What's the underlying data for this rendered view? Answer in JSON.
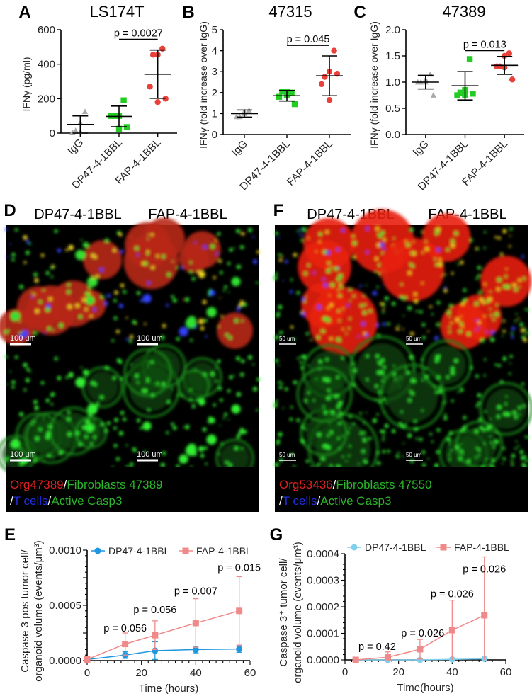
{
  "colors": {
    "igg": "#a9a9a9",
    "dp47": "#22cc22",
    "fap": "#e8413a",
    "dp47_line_E": "#1e96e0",
    "dp47_line_G": "#7fd0f0",
    "fap_line": "#f08a8a",
    "red_text": "#e02020",
    "green_text": "#2ab52a",
    "blue_text": "#2030e0"
  },
  "chart_data": [
    {
      "panel": "A",
      "type": "scatter",
      "title": "LS174T",
      "ylabel": "IFNγ (pg/ml)",
      "ylim": [
        0,
        600
      ],
      "yticks": [
        "0",
        "200",
        "400",
        "600"
      ],
      "ytick_values": [
        0,
        200,
        400,
        600
      ],
      "categories": [
        "IgG",
        "DP47-4-1BBL",
        "FAP-4-1BBL"
      ],
      "groups": [
        {
          "points": [
            125,
            60,
            15,
            5,
            10
          ],
          "mean": 50,
          "sd": 50,
          "marker": "triangle"
        },
        {
          "points": [
            190,
            100,
            100,
            100,
            25,
            35
          ],
          "mean": 97,
          "sd": 60,
          "marker": "square"
        },
        {
          "points": [
            490,
            455,
            455,
            270,
            180,
            200
          ],
          "mean": 342,
          "sd": 140,
          "marker": "circle"
        }
      ],
      "comparison": {
        "from": 1,
        "to": 2,
        "label": "p = 0.0027",
        "y": 545
      }
    },
    {
      "panel": "B",
      "type": "scatter",
      "title": "47315",
      "ylabel": "IFNγ (fold increase over IgG)",
      "ylim": [
        0,
        5
      ],
      "yticks": [
        "0",
        "1",
        "2",
        "3",
        "4",
        "5"
      ],
      "ytick_values": [
        0,
        1,
        2,
        3,
        4,
        5
      ],
      "categories": [
        "IgG",
        "DP47-4-1BBL",
        "FAP-4-1BBL"
      ],
      "groups": [
        {
          "points": [
            1.15,
            1.1,
            0.85,
            0.85,
            1.0
          ],
          "mean": 1.0,
          "sd": 0.17,
          "marker": "triangle"
        },
        {
          "points": [
            2.0,
            2.05,
            2.05,
            1.8,
            1.9,
            1.45
          ],
          "mean": 1.85,
          "sd": 0.25,
          "marker": "square"
        },
        {
          "points": [
            4.0,
            3.0,
            2.75,
            2.4,
            1.65,
            2.9
          ],
          "mean": 2.8,
          "sd": 0.95,
          "marker": "circle"
        }
      ],
      "comparison": {
        "from": 1,
        "to": 2,
        "label": "p = 0.045",
        "y": 4.25
      }
    },
    {
      "panel": "C",
      "type": "scatter",
      "title": "47389",
      "ylabel": "IFNγ (fold increase over IgG)",
      "ylim": [
        0,
        2
      ],
      "yticks": [
        "0.0",
        "0.5",
        "1.0",
        "1.5",
        "2.0"
      ],
      "ytick_values": [
        0,
        0.5,
        1,
        1.5,
        2
      ],
      "categories": [
        "IgG",
        "DP47-4-1BBL",
        "FAP-4-1BBL"
      ],
      "groups": [
        {
          "points": [
            1.15,
            1.05,
            1.0,
            1.0,
            1.0,
            0.75
          ],
          "mean": 1.0,
          "sd": 0.13,
          "marker": "triangle"
        },
        {
          "points": [
            1.44,
            0.85,
            0.8,
            0.75,
            0.75,
            0.78
          ],
          "mean": 0.93,
          "sd": 0.27,
          "marker": "square"
        },
        {
          "points": [
            1.55,
            1.5,
            1.3,
            1.3,
            1.28,
            1.05
          ],
          "mean": 1.32,
          "sd": 0.17,
          "marker": "circle"
        }
      ],
      "comparison": {
        "from": 1,
        "to": 2,
        "label": "p = 0.013",
        "y": 1.6
      }
    },
    {
      "panel": "E",
      "type": "line",
      "xlabel": "Time (hours)",
      "ylabel": [
        "Caspase 3 pos tumor cell/",
        "organoid volume (events/μm³)"
      ],
      "xlim": [
        0,
        60
      ],
      "xticks": [
        "0",
        "20",
        "40",
        "60"
      ],
      "xtick_values": [
        0,
        20,
        40,
        60
      ],
      "ylim": [
        0,
        0.001
      ],
      "yticks": [
        "0.0000",
        "0.0005",
        "0.0010"
      ],
      "ytick_values": [
        0,
        0.0005,
        0.001
      ],
      "series": [
        {
          "name": "DP47-4-1BBL",
          "x": [
            0,
            14,
            25,
            40,
            56
          ],
          "y": [
            1e-05,
            5e-05,
            9e-05,
            0.0001,
            0.000105
          ],
          "err": [
            0,
            3e-05,
            8e-05,
            3e-05,
            3e-05
          ],
          "marker": "circle"
        },
        {
          "name": "FAP-4-1BBL",
          "x": [
            0,
            14,
            25,
            40,
            56
          ],
          "y": [
            1e-05,
            0.00015,
            0.00023,
            0.00034,
            0.00045
          ],
          "err": [
            0,
            0.0001,
            0.00013,
            0.00022,
            0.00031
          ],
          "marker": "square"
        }
      ],
      "annotations": [
        {
          "x": 14,
          "y": 0.0003,
          "label": "p = 0.056"
        },
        {
          "x": 25,
          "y": 0.00041,
          "label": "p = 0.056"
        },
        {
          "x": 40,
          "y": 0.0006,
          "label": "p = 0.007"
        },
        {
          "x": 56,
          "y": 0.00081,
          "label": "p = 0.015"
        }
      ]
    },
    {
      "panel": "G",
      "type": "line",
      "xlabel": "Time(hours)",
      "ylabel": [
        "Caspase 3⁺ tumor cell/",
        "organoid volume (events/μm³)"
      ],
      "xlim": [
        0,
        60
      ],
      "xticks": [
        "0",
        "20",
        "40",
        "60"
      ],
      "xtick_values": [
        0,
        20,
        40,
        60
      ],
      "ylim": [
        0,
        0.0004
      ],
      "yticks": [
        "0.0000",
        "0.0001",
        "0.0002",
        "0.0003",
        "0.0004"
      ],
      "ytick_values": [
        0,
        0.0001,
        0.0002,
        0.0003,
        0.0004
      ],
      "series": [
        {
          "name": "DP47-4-1BBL",
          "x": [
            4,
            16,
            28,
            40,
            52
          ],
          "y": [
            0,
            0,
            0,
            2e-06,
            4e-06
          ],
          "err": [
            0,
            0,
            0,
            0,
            0
          ],
          "marker": "circle"
        },
        {
          "name": "FAP-4-1BBL",
          "x": [
            4,
            16,
            28,
            40,
            52
          ],
          "y": [
            0,
            1e-05,
            4e-05,
            0.000112,
            0.000168
          ],
          "err": [
            0,
            2e-05,
            3.7e-05,
            0.000113,
            0.00022
          ],
          "marker": "square"
        }
      ],
      "annotations": [
        {
          "x": 12,
          "y": 3.7e-05,
          "label": "p = 0.42"
        },
        {
          "x": 29,
          "y": 8.8e-05,
          "label": "p = 0.026"
        },
        {
          "x": 40,
          "y": 0.000236,
          "label": "p = 0.026"
        },
        {
          "x": 52,
          "y": 0.00033,
          "label": "p = 0.026"
        }
      ]
    }
  ],
  "microscopy": {
    "D": {
      "label": "D",
      "columns": [
        "DP47-4-1BBL",
        "FAP-4-1BBL"
      ],
      "scalebar": "100 um",
      "caption": {
        "org": "Org47389",
        "fib": "Fibroblasts 47389",
        "sep": "/",
        "tcells": "T cells",
        "casp": "Active Casp3"
      }
    },
    "F": {
      "label": "F",
      "columns": [
        "DP47-4-1BBL",
        "FAP-4-1BBL"
      ],
      "scalebar": "50 um",
      "caption": {
        "org": "Org53436",
        "fib": "Fibroblasts 47550",
        "sep": "/",
        "tcells": "T cells",
        "casp": "Active Casp3"
      }
    }
  }
}
